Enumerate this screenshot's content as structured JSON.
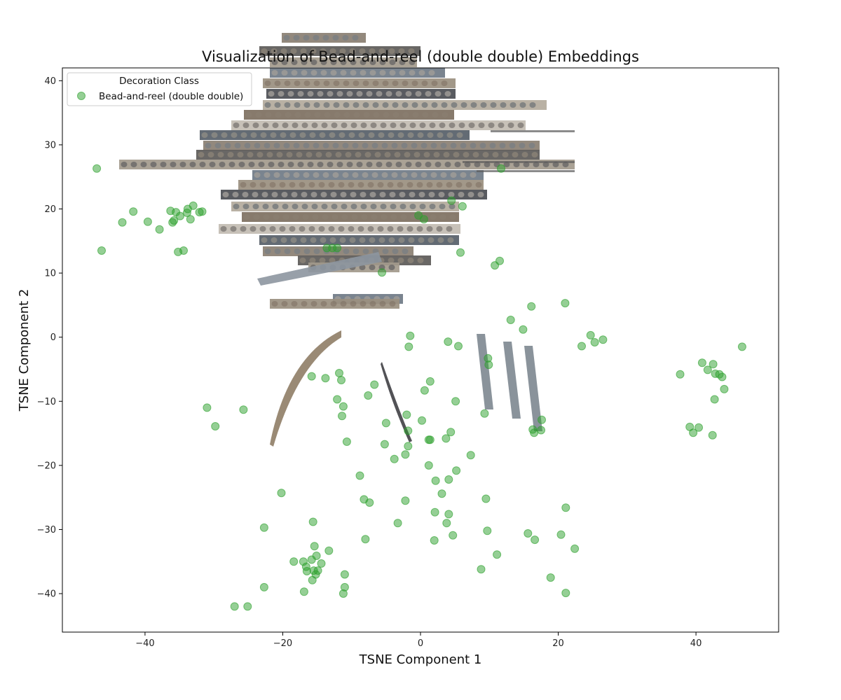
{
  "chart_data": {
    "type": "scatter",
    "title": "Visualization of Bead-and-reel (double double) Embeddings",
    "xlabel": "TSNE Component 1",
    "ylabel": "TSNE Component 2",
    "xlim": [
      -52,
      52
    ],
    "ylim": [
      -46,
      42
    ],
    "xticks": [
      -40,
      -20,
      0,
      20,
      40
    ],
    "yticks": [
      -40,
      -30,
      -20,
      -10,
      0,
      10,
      20,
      30,
      40
    ],
    "grid": false,
    "legend": {
      "title": "Decoration Class",
      "placement": "top-left"
    },
    "series": [
      {
        "name": "Bead-and-reel (double double)",
        "color": "#2ca02c",
        "alpha": 0.5,
        "points": [
          [
            -47,
            26.3
          ],
          [
            -46.3,
            13.5
          ],
          [
            -43.3,
            17.9
          ],
          [
            -41.7,
            19.6
          ],
          [
            -39.6,
            18
          ],
          [
            -37.9,
            16.8
          ],
          [
            -36.3,
            19.7
          ],
          [
            -36,
            17.9
          ],
          [
            -35.8,
            18.2
          ],
          [
            -35.5,
            19.5
          ],
          [
            -35.2,
            13.3
          ],
          [
            -34.9,
            18.9
          ],
          [
            -34.4,
            13.5
          ],
          [
            -33.9,
            19.4
          ],
          [
            -33.8,
            20
          ],
          [
            -33.4,
            18.4
          ],
          [
            -33,
            20.5
          ],
          [
            -32.1,
            19.5
          ],
          [
            -31.7,
            19.6
          ],
          [
            -13.6,
            13.9
          ],
          [
            -12.8,
            13.9
          ],
          [
            -12.1,
            13.9
          ],
          [
            -5.6,
            10.1
          ],
          [
            -0.3,
            19
          ],
          [
            0.5,
            18.4
          ],
          [
            4.5,
            21.3
          ],
          [
            6.1,
            20.4
          ],
          [
            5.8,
            13.2
          ],
          [
            10.8,
            11.2
          ],
          [
            11.5,
            11.9
          ],
          [
            11.7,
            26.3
          ],
          [
            16.1,
            4.8
          ],
          [
            21,
            5.3
          ],
          [
            13.1,
            2.7
          ],
          [
            14.9,
            1.2
          ],
          [
            24.7,
            0.3
          ],
          [
            25.3,
            -0.8
          ],
          [
            26.5,
            -0.4
          ],
          [
            23.4,
            -1.4
          ],
          [
            46.7,
            -1.5
          ],
          [
            -1.7,
            -1.5
          ],
          [
            -1.5,
            0.2
          ],
          [
            4,
            -0.7
          ],
          [
            5.5,
            -1.4
          ],
          [
            9.8,
            -3.3
          ],
          [
            9.9,
            -4.3
          ],
          [
            0.6,
            -8.3
          ],
          [
            1.4,
            -6.9
          ],
          [
            5.1,
            -10
          ],
          [
            -15.8,
            -6.1
          ],
          [
            -13.8,
            -6.4
          ],
          [
            -11.8,
            -5.6
          ],
          [
            -11.5,
            -6.7
          ],
          [
            -6.7,
            -7.4
          ],
          [
            -7.6,
            -9.1
          ],
          [
            -12.1,
            -9.7
          ],
          [
            -11.2,
            -10.8
          ],
          [
            -11.4,
            -12.3
          ],
          [
            -5,
            -13.4
          ],
          [
            -2,
            -12.1
          ],
          [
            -1.8,
            -14.6
          ],
          [
            0.2,
            -13
          ],
          [
            1.2,
            -16
          ],
          [
            1.4,
            -16
          ],
          [
            3.7,
            -15.8
          ],
          [
            4.4,
            -14.8
          ],
          [
            9.3,
            -11.9
          ],
          [
            16.3,
            -14.4
          ],
          [
            16.5,
            -14.9
          ],
          [
            17.5,
            -14.5
          ],
          [
            17.6,
            -12.9
          ],
          [
            -1.8,
            -17
          ],
          [
            -2.2,
            -18.3
          ],
          [
            -3.8,
            -19
          ],
          [
            -5.2,
            -16.7
          ],
          [
            -10.7,
            -16.3
          ],
          [
            1.2,
            -20
          ],
          [
            7.3,
            -18.4
          ],
          [
            5.2,
            -20.8
          ],
          [
            -31,
            -11
          ],
          [
            -29.8,
            -13.9
          ],
          [
            -25.7,
            -11.3
          ],
          [
            -8.8,
            -21.6
          ],
          [
            -8.2,
            -25.3
          ],
          [
            -7.4,
            -25.8
          ],
          [
            -2.2,
            -25.5
          ],
          [
            2.2,
            -22.4
          ],
          [
            3.1,
            -24.4
          ],
          [
            4.1,
            -22.2
          ],
          [
            9.5,
            -25.2
          ],
          [
            21.1,
            -26.6
          ],
          [
            -20.2,
            -24.3
          ],
          [
            -22.7,
            -29.7
          ],
          [
            -15.6,
            -28.8
          ],
          [
            -3.3,
            -29
          ],
          [
            2.1,
            -27.3
          ],
          [
            4.1,
            -27.6
          ],
          [
            3.8,
            -29
          ],
          [
            4.7,
            -30.9
          ],
          [
            9.7,
            -30.2
          ],
          [
            15.6,
            -30.6
          ],
          [
            16.6,
            -31.6
          ],
          [
            20.4,
            -30.8
          ],
          [
            22.4,
            -33
          ],
          [
            11.1,
            -33.9
          ],
          [
            18.9,
            -37.5
          ],
          [
            21.1,
            -39.9
          ],
          [
            8.8,
            -36.2
          ],
          [
            2,
            -31.7
          ],
          [
            -8,
            -31.5
          ],
          [
            -18.4,
            -35
          ],
          [
            -17,
            -35
          ],
          [
            -16.6,
            -35.8
          ],
          [
            -16.5,
            -36.5
          ],
          [
            -15.8,
            -34.7
          ],
          [
            -15.4,
            -32.6
          ],
          [
            -15.1,
            -34.1
          ],
          [
            -14.4,
            -35.3
          ],
          [
            -13.3,
            -33.3
          ],
          [
            -15.5,
            -36.4
          ],
          [
            -15.7,
            -37.9
          ],
          [
            -15.2,
            -37
          ],
          [
            -14.9,
            -36.4
          ],
          [
            -16.9,
            -39.7
          ],
          [
            -11,
            -37
          ],
          [
            -11,
            -39
          ],
          [
            -11.2,
            -40
          ],
          [
            -22.7,
            -39
          ],
          [
            -27,
            -42
          ],
          [
            -25.1,
            -42
          ],
          [
            37.7,
            -5.8
          ],
          [
            40.9,
            -4
          ],
          [
            41.7,
            -5.1
          ],
          [
            42.5,
            -4.2
          ],
          [
            42.8,
            -5.7
          ],
          [
            43.4,
            -5.8
          ],
          [
            43.8,
            -6.2
          ],
          [
            44.1,
            -8.1
          ],
          [
            42.7,
            -9.7
          ],
          [
            39.1,
            -14
          ],
          [
            39.6,
            -14.9
          ],
          [
            40.4,
            -14.1
          ],
          [
            42.4,
            -15.3
          ]
        ]
      }
    ]
  }
}
